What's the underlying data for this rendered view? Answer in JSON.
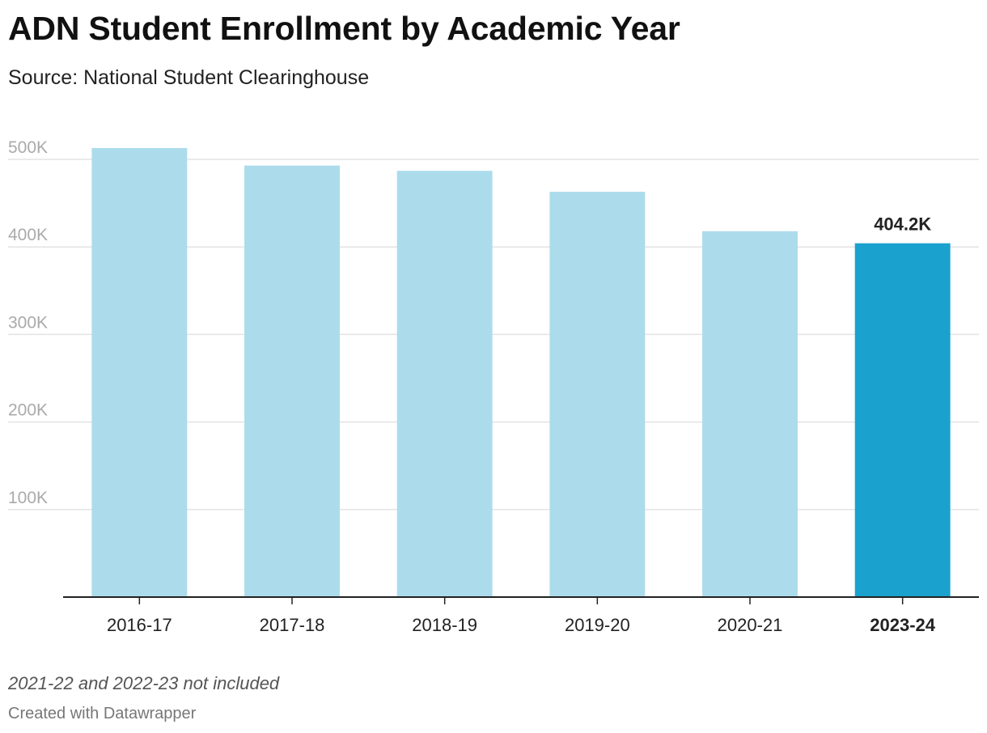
{
  "header": {
    "title": "ADN Student Enrollment by Academic Year",
    "subtitle": "Source: National Student Clearinghouse"
  },
  "footer": {
    "note": "2021-22 and 2022-23 not included",
    "credit": "Created with Datawrapper"
  },
  "colors": {
    "bar_default": "#acdcec",
    "bar_highlight": "#1aa1ce",
    "grid": "#e3e3e3",
    "axis": "#222222",
    "tick_label": "#aaaaaa",
    "category_label": "#222222"
  },
  "chart_data": {
    "type": "bar",
    "title": "ADN Student Enrollment by Academic Year",
    "xlabel": "",
    "ylabel": "",
    "categories": [
      "2016-17",
      "2017-18",
      "2018-19",
      "2019-20",
      "2020-21",
      "2023-24"
    ],
    "values": [
      513000,
      493000,
      487000,
      463000,
      418000,
      404200
    ],
    "highlight_index": 5,
    "data_labels": [
      {
        "index": 5,
        "text": "404.2K"
      }
    ],
    "ylim": [
      0,
      525000
    ],
    "yticks": [
      100000,
      200000,
      300000,
      400000,
      500000
    ],
    "ytick_labels": [
      "100K",
      "200K",
      "300K",
      "400K",
      "500K"
    ],
    "grid": true
  }
}
